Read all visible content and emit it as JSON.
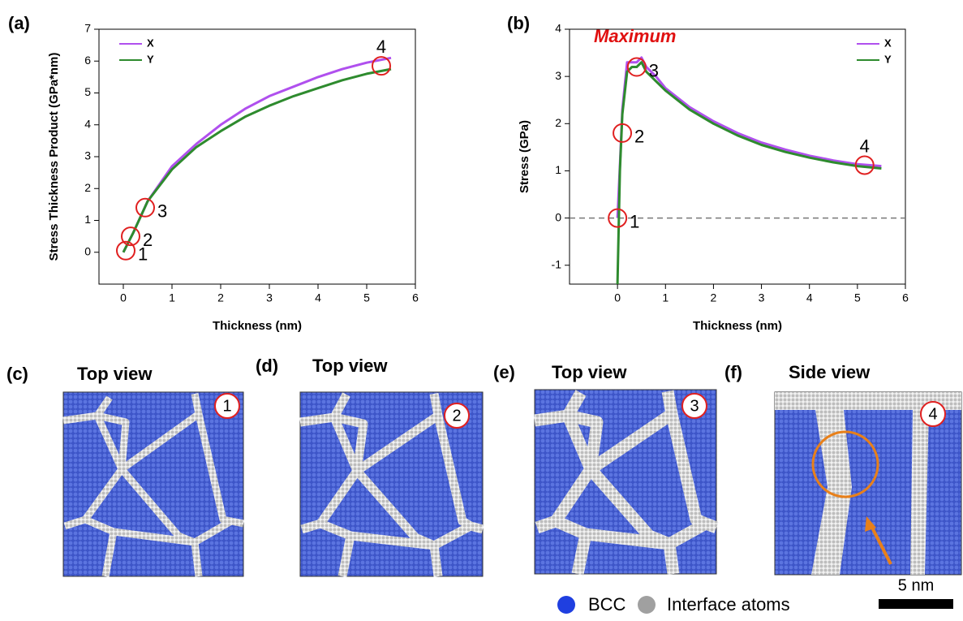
{
  "chart_data": [
    {
      "type": "line",
      "panel_label": "(a)",
      "xlabel": "Thickness (nm)",
      "ylabel": "Stress Thickness Product (GPa*nm)",
      "xlim": [
        -0.5,
        6
      ],
      "ylim": [
        -1,
        7
      ],
      "xticks": [
        0,
        1,
        2,
        3,
        4,
        5,
        6
      ],
      "yticks": [
        0,
        1,
        2,
        3,
        4,
        5,
        6,
        7
      ],
      "legend": "upper left",
      "x": [
        0,
        0.2,
        0.5,
        1,
        1.5,
        2,
        2.5,
        3,
        3.5,
        4,
        4.5,
        5,
        5.5
      ],
      "series": [
        {
          "name": "X",
          "color": "#b050ee",
          "values": [
            0,
            0.6,
            1.6,
            2.7,
            3.4,
            4.0,
            4.5,
            4.9,
            5.2,
            5.5,
            5.75,
            5.95,
            6.1
          ]
        },
        {
          "name": "Y",
          "color": "#2e8b2e",
          "values": [
            0,
            0.6,
            1.6,
            2.6,
            3.3,
            3.8,
            4.25,
            4.6,
            4.9,
            5.15,
            5.4,
            5.6,
            5.75
          ]
        }
      ],
      "markers": [
        {
          "label": "1",
          "x": 0.05,
          "y": 0.05
        },
        {
          "label": "2",
          "x": 0.15,
          "y": 0.5
        },
        {
          "label": "3",
          "x": 0.45,
          "y": 1.4
        },
        {
          "label": "4",
          "x": 5.3,
          "y": 5.85
        }
      ]
    },
    {
      "type": "line",
      "panel_label": "(b)",
      "xlabel": "Thickness (nm)",
      "ylabel": "Stress (GPa)",
      "annotation": "Maximum",
      "xlim": [
        -1,
        6
      ],
      "ylim": [
        -1.4,
        4
      ],
      "xticks": [
        0,
        1,
        2,
        3,
        4,
        5,
        6
      ],
      "yticks": [
        -1,
        0,
        1,
        2,
        3,
        4
      ],
      "hline": 0,
      "legend": "upper right",
      "x": [
        0,
        0.05,
        0.1,
        0.2,
        0.3,
        0.4,
        0.5,
        0.6,
        0.8,
        1,
        1.5,
        2,
        2.5,
        3,
        3.5,
        4,
        4.5,
        5,
        5.5
      ],
      "series": [
        {
          "name": "X",
          "color": "#b050ee",
          "values": [
            0,
            1.1,
            2.3,
            3.3,
            3.3,
            3.3,
            3.4,
            3.2,
            3.0,
            2.75,
            2.35,
            2.05,
            1.8,
            1.6,
            1.45,
            1.32,
            1.22,
            1.14,
            1.1
          ]
        },
        {
          "name": "Y",
          "color": "#2e8b2e",
          "values": [
            -1.4,
            1.0,
            2.2,
            3.1,
            3.2,
            3.2,
            3.3,
            3.1,
            2.9,
            2.7,
            2.3,
            2.0,
            1.75,
            1.55,
            1.4,
            1.28,
            1.18,
            1.1,
            1.05
          ]
        }
      ],
      "markers": [
        {
          "label": "1",
          "x": 0,
          "y": 0
        },
        {
          "label": "2",
          "x": 0.1,
          "y": 1.8
        },
        {
          "label": "3",
          "x": 0.4,
          "y": 3.2
        },
        {
          "label": "4",
          "x": 5.15,
          "y": 1.12
        }
      ]
    }
  ],
  "panels": [
    {
      "label": "(c)",
      "title": "Top view",
      "badge": "1"
    },
    {
      "label": "(d)",
      "title": "Top view",
      "badge": "2"
    },
    {
      "label": "(e)",
      "title": "Top view",
      "badge": "3"
    },
    {
      "label": "(f)",
      "title": "Side view",
      "badge": "4"
    }
  ],
  "legend": [
    "BCC",
    "Interface atoms"
  ],
  "scale_bar": "5 nm"
}
